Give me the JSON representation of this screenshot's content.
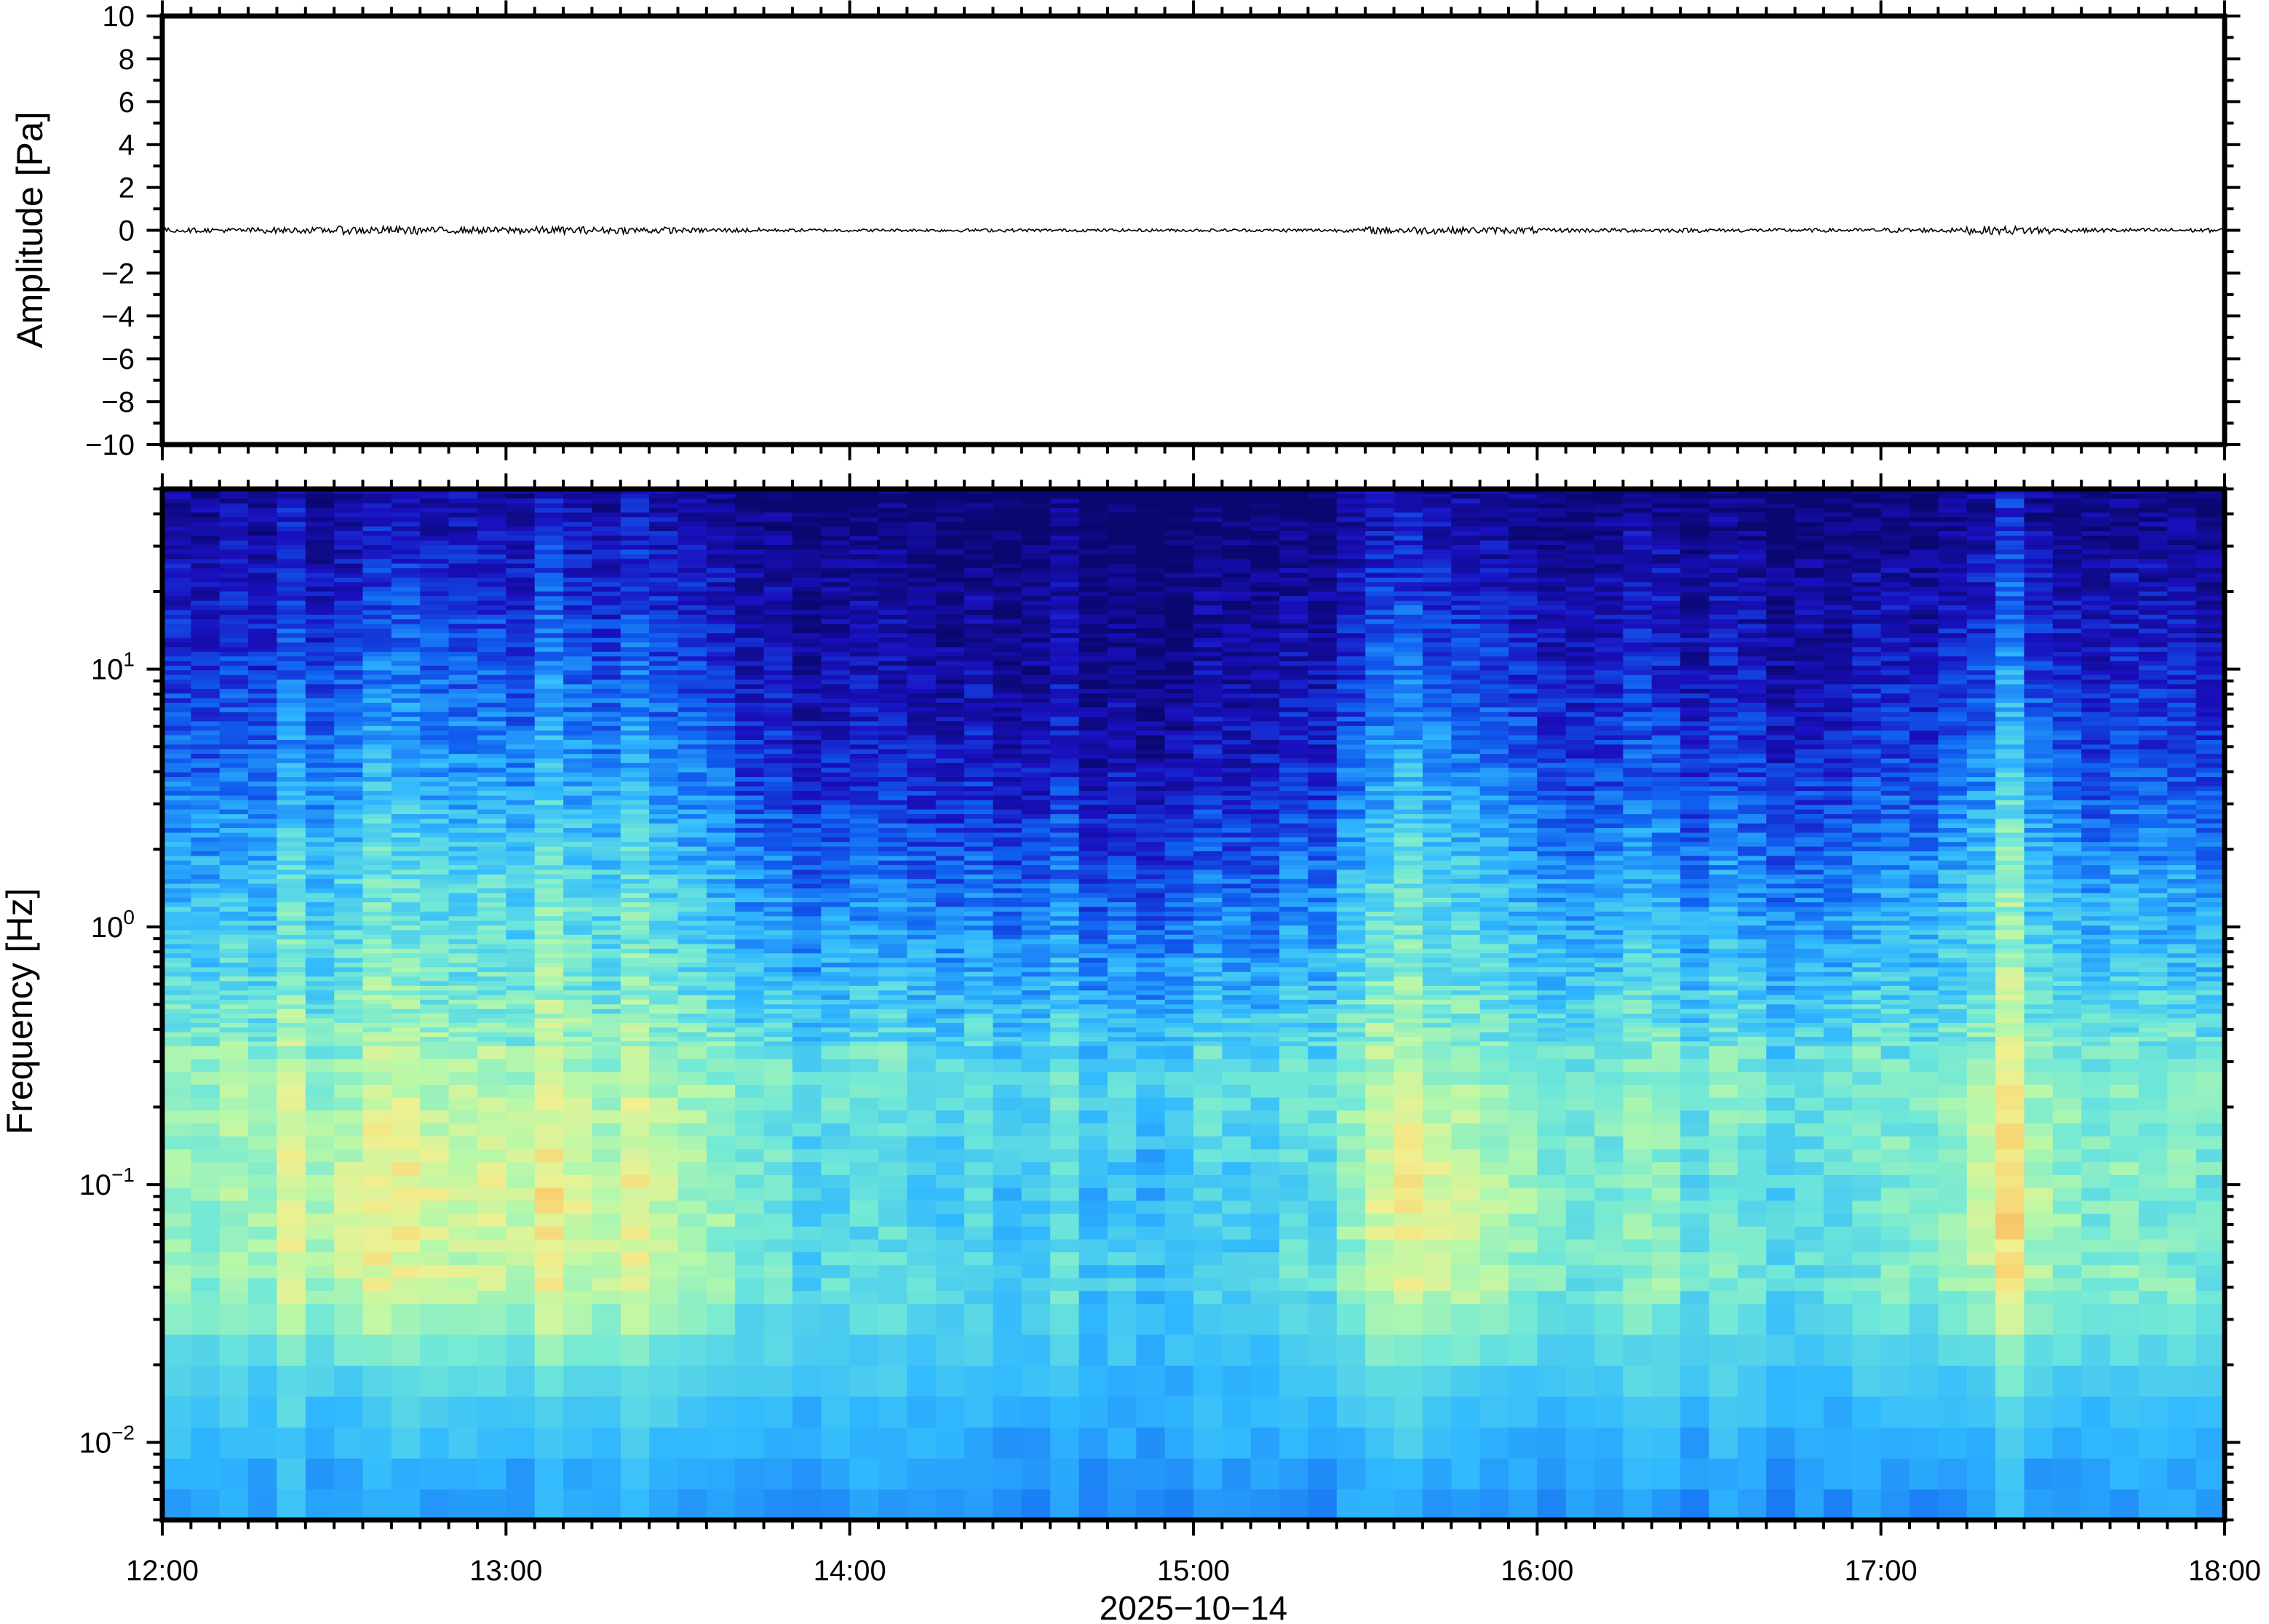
{
  "chart_data": [
    {
      "type": "line",
      "ylabel": "Amplitude [Pa]",
      "ylim": [
        -10,
        10
      ],
      "yticks": [
        "10",
        "8",
        "6",
        "4",
        "2",
        "0",
        "−2",
        "−4",
        "−6",
        "−8",
        "−10"
      ],
      "ytick_values": [
        10,
        8,
        6,
        4,
        2,
        0,
        -2,
        -4,
        -6,
        -8,
        -10
      ],
      "xlim": [
        "12:00",
        "18:00"
      ],
      "trace_level": "near zero, with small bursts near 12:25, 15:35 and 17:15",
      "color": "#000000"
    },
    {
      "type": "heatmap",
      "ylabel": "Frequency [Hz]",
      "xlabel": "2025−10−14",
      "y_scale": "log",
      "ylim_hz": [
        0.005,
        50
      ],
      "yticks": [
        {
          "base": "10",
          "exp": "−2",
          "value": 0.01
        },
        {
          "base": "10",
          "exp": "−1",
          "value": 0.1
        },
        {
          "base": "10",
          "exp": "0",
          "value": 1
        },
        {
          "base": "10",
          "exp": "1",
          "value": 10
        }
      ],
      "xticks": [
        "12:00",
        "13:00",
        "14:00",
        "15:00",
        "16:00",
        "17:00",
        "18:00"
      ],
      "colormap": [
        "#0a0870",
        "#1a10c0",
        "#1060f0",
        "#30b8ff",
        "#70e8d8",
        "#b8f8a8",
        "#f0f090",
        "#f8d070",
        "#f8a050"
      ],
      "time_bins": [
        "12:00",
        "12:15",
        "12:30",
        "12:45",
        "13:00",
        "13:15",
        "13:30",
        "13:45",
        "14:00",
        "14:15",
        "14:30",
        "14:45",
        "15:00",
        "15:15",
        "15:30",
        "15:45",
        "16:00",
        "16:15",
        "16:30",
        "16:45",
        "17:00",
        "17:15",
        "17:30",
        "17:45"
      ],
      "band_centers_hz": [
        25,
        10,
        4,
        1.6,
        0.63,
        0.25,
        0.1,
        0.04,
        0.016,
        0.006
      ],
      "relative_level": [
        [
          0.12,
          0.16,
          0.22,
          0.18,
          0.2,
          0.18,
          0.12,
          0.06,
          0.04,
          0.06,
          0.04,
          0.04,
          0.04,
          0.08,
          0.2,
          0.18,
          0.1,
          0.1,
          0.08,
          0.08,
          0.12,
          0.22,
          0.1,
          0.1
        ],
        [
          0.2,
          0.26,
          0.35,
          0.29,
          0.32,
          0.29,
          0.2,
          0.11,
          0.08,
          0.11,
          0.08,
          0.08,
          0.08,
          0.14,
          0.32,
          0.29,
          0.17,
          0.17,
          0.14,
          0.14,
          0.2,
          0.35,
          0.17,
          0.17
        ],
        [
          0.3,
          0.37,
          0.47,
          0.4,
          0.44,
          0.4,
          0.3,
          0.19,
          0.16,
          0.19,
          0.16,
          0.16,
          0.16,
          0.23,
          0.44,
          0.4,
          0.26,
          0.26,
          0.23,
          0.23,
          0.3,
          0.47,
          0.26,
          0.26
        ],
        [
          0.43,
          0.5,
          0.6,
          0.53,
          0.57,
          0.53,
          0.43,
          0.32,
          0.29,
          0.32,
          0.29,
          0.29,
          0.29,
          0.36,
          0.57,
          0.53,
          0.39,
          0.39,
          0.36,
          0.36,
          0.43,
          0.6,
          0.39,
          0.39
        ],
        [
          0.53,
          0.58,
          0.65,
          0.6,
          0.63,
          0.6,
          0.53,
          0.45,
          0.43,
          0.45,
          0.43,
          0.43,
          0.43,
          0.48,
          0.63,
          0.6,
          0.5,
          0.5,
          0.48,
          0.48,
          0.53,
          0.65,
          0.5,
          0.5
        ],
        [
          0.65,
          0.69,
          0.75,
          0.71,
          0.73,
          0.71,
          0.65,
          0.59,
          0.57,
          0.59,
          0.57,
          0.57,
          0.57,
          0.61,
          0.73,
          0.71,
          0.63,
          0.63,
          0.61,
          0.61,
          0.65,
          0.75,
          0.63,
          0.63
        ],
        [
          0.65,
          0.73,
          0.85,
          0.77,
          0.81,
          0.77,
          0.65,
          0.53,
          0.49,
          0.53,
          0.49,
          0.49,
          0.49,
          0.57,
          0.81,
          0.77,
          0.61,
          0.61,
          0.57,
          0.57,
          0.65,
          0.85,
          0.61,
          0.61
        ],
        [
          0.65,
          0.71,
          0.8,
          0.74,
          0.77,
          0.74,
          0.65,
          0.56,
          0.53,
          0.56,
          0.53,
          0.53,
          0.53,
          0.59,
          0.77,
          0.74,
          0.62,
          0.62,
          0.59,
          0.59,
          0.65,
          0.8,
          0.62,
          0.62
        ],
        [
          0.5,
          0.52,
          0.55,
          0.53,
          0.54,
          0.53,
          0.5,
          0.47,
          0.46,
          0.47,
          0.46,
          0.46,
          0.46,
          0.48,
          0.54,
          0.53,
          0.49,
          0.49,
          0.48,
          0.48,
          0.5,
          0.55,
          0.49,
          0.49
        ],
        [
          0.4,
          0.42,
          0.43,
          0.42,
          0.43,
          0.42,
          0.4,
          0.39,
          0.39,
          0.39,
          0.39,
          0.39,
          0.39,
          0.4,
          0.43,
          0.42,
          0.4,
          0.4,
          0.4,
          0.4,
          0.4,
          0.43,
          0.4,
          0.4
        ]
      ]
    }
  ]
}
